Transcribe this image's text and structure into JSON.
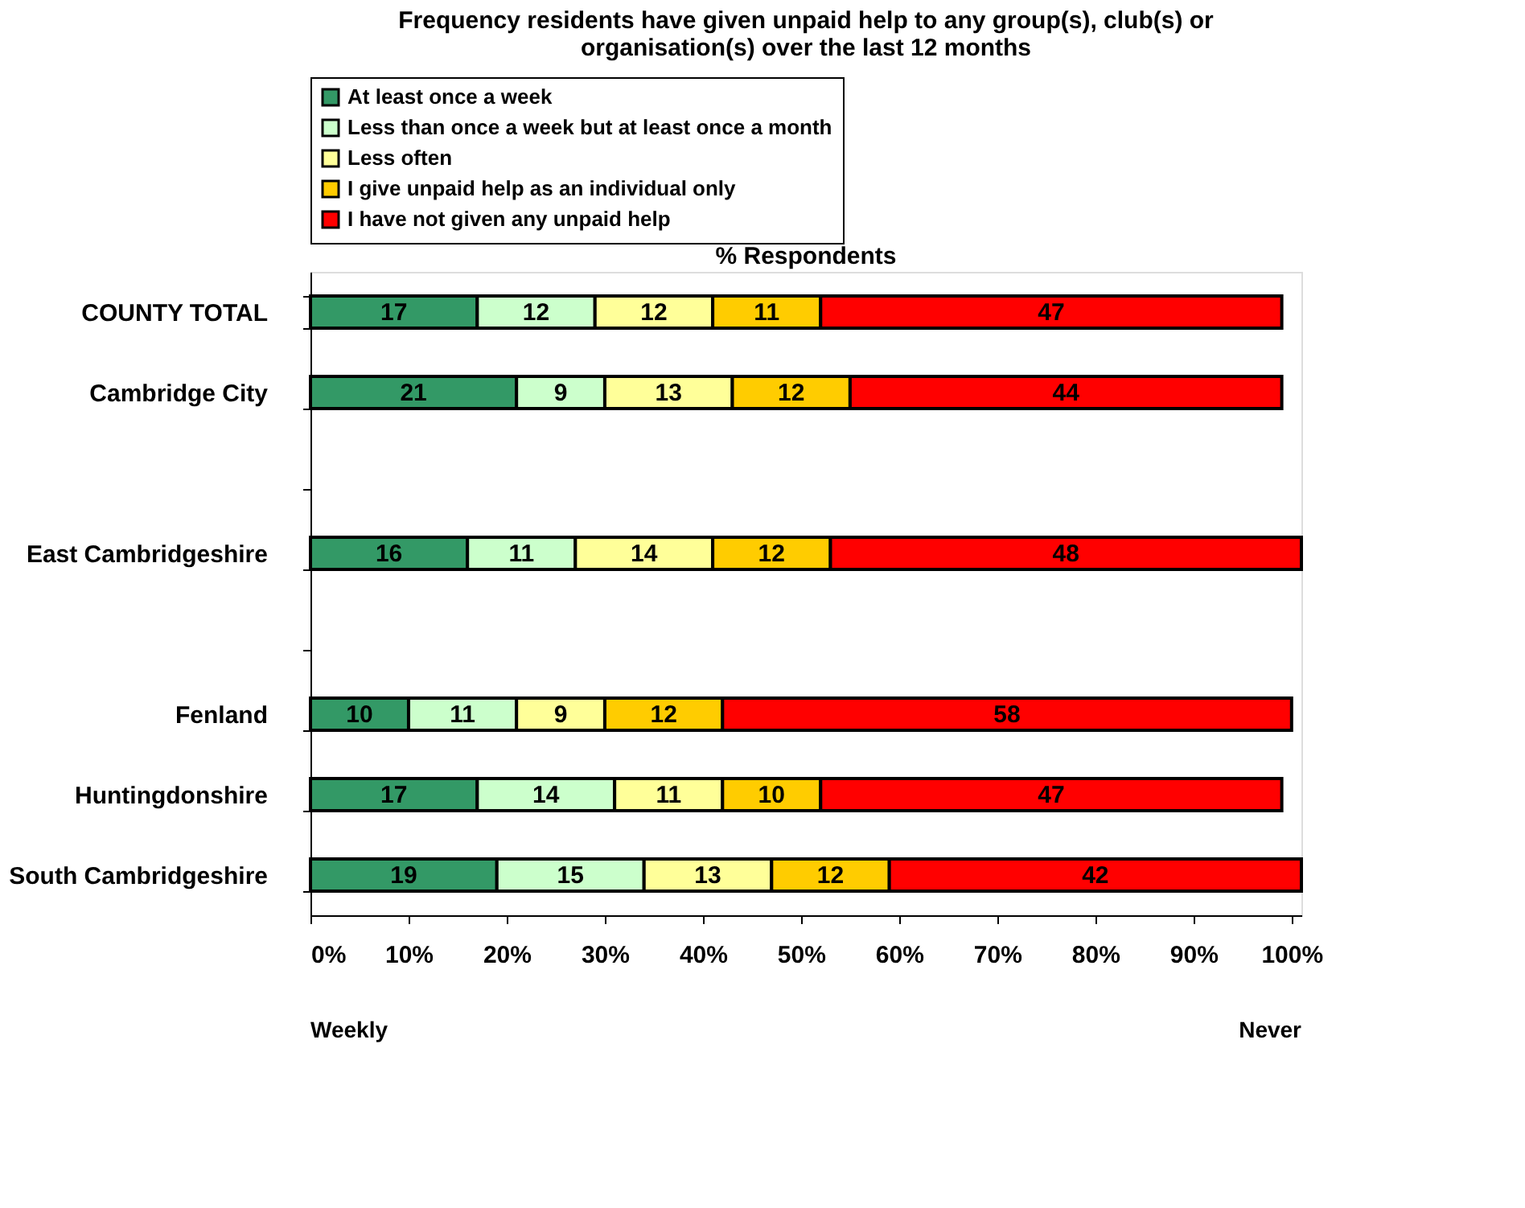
{
  "chart_data": {
    "type": "bar",
    "orientation": "horizontal",
    "stacked": true,
    "title": "Frequency residents have given unpaid help to any group(s), club(s) or\norganisation(s) over the last 12 months",
    "xlabel": "% Respondents",
    "categories": [
      "COUNTY TOTAL",
      "Cambridge City",
      null,
      "East Cambridgeshire",
      null,
      "Fenland",
      "Huntingdonshire",
      "South Cambridgeshire"
    ],
    "series": [
      {
        "name": "At least once a week",
        "color": "#339966",
        "values": [
          17,
          21,
          null,
          16,
          null,
          10,
          17,
          19
        ]
      },
      {
        "name": "Less than once a week but at least once a month",
        "color": "#ccffcc",
        "values": [
          12,
          9,
          null,
          11,
          null,
          11,
          14,
          15
        ]
      },
      {
        "name": "Less often",
        "color": "#ffff99",
        "values": [
          12,
          13,
          null,
          14,
          null,
          9,
          11,
          13
        ]
      },
      {
        "name": "I give unpaid help as an individual only",
        "color": "#ffcc00",
        "values": [
          11,
          12,
          null,
          12,
          null,
          12,
          10,
          12
        ]
      },
      {
        "name": "I have not given any unpaid help",
        "color": "#ff0000",
        "values": [
          47,
          44,
          null,
          48,
          null,
          58,
          47,
          42
        ]
      }
    ],
    "xlim": [
      0,
      101
    ],
    "xticks": [
      {
        "value": 0,
        "label": "0%"
      },
      {
        "value": 10,
        "label": "10%"
      },
      {
        "value": 20,
        "label": "20%"
      },
      {
        "value": 30,
        "label": "30%"
      },
      {
        "value": 40,
        "label": "40%"
      },
      {
        "value": 50,
        "label": "50%"
      },
      {
        "value": 60,
        "label": "60%"
      },
      {
        "value": 70,
        "label": "70%"
      },
      {
        "value": 80,
        "label": "80%"
      },
      {
        "value": 90,
        "label": "90%"
      },
      {
        "value": 100,
        "label": "100%"
      }
    ],
    "annotations": [
      "Weekly",
      "Never"
    ],
    "data_labels": true,
    "grid": false,
    "legend": "top"
  }
}
